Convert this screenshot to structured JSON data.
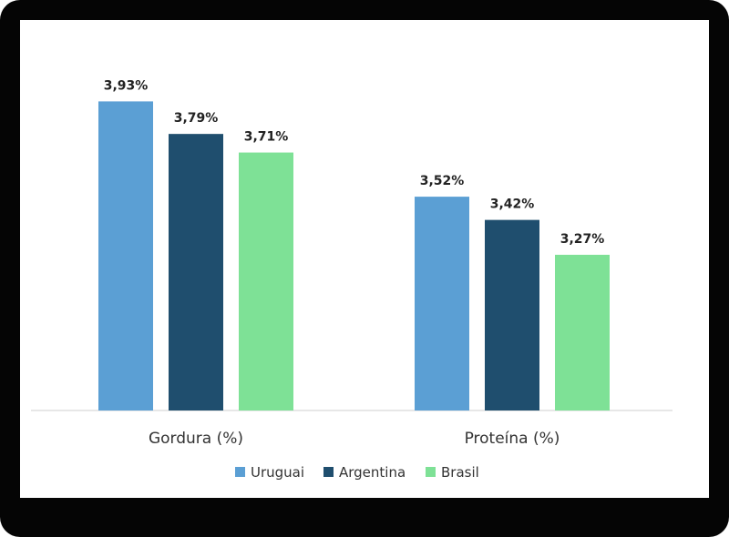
{
  "chart_data": {
    "type": "bar",
    "categories": [
      "Gordura (%)",
      "Proteína (%)"
    ],
    "series": [
      {
        "name": "Uruguai",
        "values": [
          3.93,
          3.52
        ],
        "labels": [
          "3,93%",
          "3,52%"
        ],
        "color": "#5b9fd4"
      },
      {
        "name": "Argentina",
        "values": [
          3.79,
          3.42
        ],
        "labels": [
          "3,79%",
          "3,42%"
        ],
        "color": "#1f4e6e"
      },
      {
        "name": "Brasil",
        "values": [
          3.71,
          3.27
        ],
        "labels": [
          "3,71%",
          "3,27%"
        ],
        "color": "#7ee196"
      }
    ],
    "ylim": [
      2.6,
      4.1
    ],
    "legend_position": "bottom",
    "grid": false
  }
}
